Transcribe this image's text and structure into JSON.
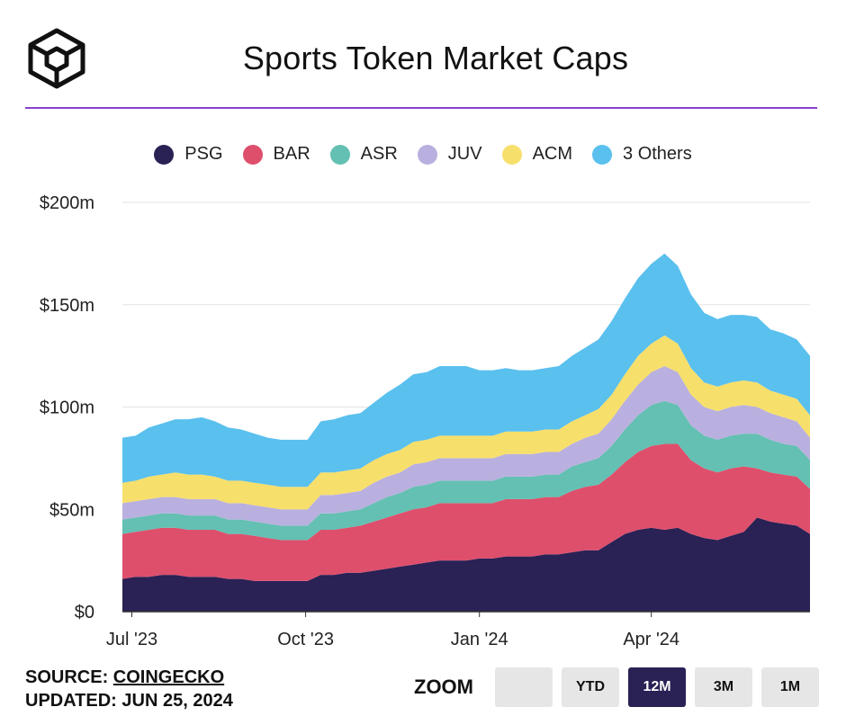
{
  "header": {
    "title": "Sports Token Market Caps"
  },
  "footer": {
    "source_label": "SOURCE:",
    "source_link": "COINGECKO",
    "updated_label": "UPDATED:",
    "updated_value": "JUN 25, 2024"
  },
  "zoom": {
    "label": "ZOOM",
    "buttons": [
      "",
      "YTD",
      "12M",
      "3M",
      "1M"
    ],
    "selected": "12M"
  },
  "colors": {
    "accent_rule": "#8a3fd0",
    "PSG": "#2a2155",
    "BAR": "#de4f6c",
    "ASR": "#63c0b2",
    "JUV": "#b9b0df",
    "ACM": "#f7df6b",
    "Others": "#5ac0ee"
  },
  "chart_data": {
    "type": "area",
    "stacked": true,
    "title": "Sports Token Market Caps",
    "y_unit": "$m",
    "ylim": [
      0,
      200
    ],
    "y_ticks": [
      0,
      50,
      100,
      150,
      200
    ],
    "y_tick_labels": [
      "$0",
      "$50m",
      "$100m",
      "$150m",
      "$200m"
    ],
    "x_ticks": [
      "2023-07-01",
      "2023-10-01",
      "2024-01-01",
      "2024-04-01"
    ],
    "x_tick_labels": [
      "Jul '23",
      "Oct '23",
      "Jan '24",
      "Apr '24"
    ],
    "grid": true,
    "legend_position": "top",
    "dates": [
      "2023-06-26",
      "2023-07-03",
      "2023-07-10",
      "2023-07-17",
      "2023-07-24",
      "2023-07-31",
      "2023-08-07",
      "2023-08-14",
      "2023-08-21",
      "2023-08-28",
      "2023-09-04",
      "2023-09-11",
      "2023-09-18",
      "2023-09-25",
      "2023-10-02",
      "2023-10-09",
      "2023-10-16",
      "2023-10-23",
      "2023-10-30",
      "2023-11-06",
      "2023-11-13",
      "2023-11-20",
      "2023-11-27",
      "2023-12-04",
      "2023-12-11",
      "2023-12-18",
      "2023-12-25",
      "2024-01-01",
      "2024-01-08",
      "2024-01-15",
      "2024-01-22",
      "2024-01-29",
      "2024-02-05",
      "2024-02-12",
      "2024-02-19",
      "2024-02-26",
      "2024-03-04",
      "2024-03-11",
      "2024-03-18",
      "2024-03-25",
      "2024-04-01",
      "2024-04-08",
      "2024-04-15",
      "2024-04-22",
      "2024-04-29",
      "2024-05-06",
      "2024-05-13",
      "2024-05-20",
      "2024-05-27",
      "2024-06-03",
      "2024-06-10",
      "2024-06-17",
      "2024-06-24"
    ],
    "series": [
      {
        "name": "PSG",
        "values": [
          16,
          17,
          17,
          18,
          18,
          17,
          17,
          17,
          16,
          16,
          15,
          15,
          15,
          15,
          15,
          18,
          18,
          19,
          19,
          20,
          21,
          22,
          23,
          24,
          25,
          25,
          25,
          26,
          26,
          27,
          27,
          27,
          28,
          28,
          29,
          30,
          30,
          34,
          38,
          40,
          41,
          40,
          41,
          38,
          36,
          35,
          37,
          39,
          46,
          44,
          43,
          42,
          38
        ]
      },
      {
        "name": "BAR",
        "values": [
          22,
          22,
          23,
          23,
          23,
          23,
          23,
          23,
          22,
          22,
          22,
          21,
          20,
          20,
          20,
          22,
          22,
          22,
          23,
          24,
          25,
          26,
          27,
          27,
          28,
          28,
          28,
          27,
          27,
          28,
          28,
          28,
          28,
          28,
          30,
          31,
          32,
          33,
          35,
          38,
          40,
          42,
          41,
          36,
          34,
          33,
          33,
          32,
          24,
          24,
          24,
          24,
          22
        ]
      },
      {
        "name": "ASR",
        "values": [
          7,
          7,
          7,
          7,
          7,
          7,
          7,
          7,
          7,
          7,
          7,
          7,
          7,
          7,
          7,
          8,
          8,
          8,
          8,
          9,
          10,
          10,
          11,
          11,
          11,
          11,
          11,
          11,
          11,
          11,
          11,
          11,
          11,
          11,
          12,
          12,
          13,
          14,
          16,
          18,
          20,
          21,
          19,
          17,
          16,
          16,
          16,
          16,
          17,
          16,
          15,
          15,
          14
        ]
      },
      {
        "name": "JUV",
        "values": [
          8,
          8,
          8,
          8,
          8,
          8,
          8,
          8,
          8,
          8,
          8,
          8,
          8,
          8,
          8,
          9,
          9,
          9,
          9,
          10,
          10,
          10,
          11,
          11,
          11,
          11,
          11,
          11,
          11,
          11,
          11,
          11,
          11,
          11,
          11,
          12,
          12,
          13,
          14,
          15,
          16,
          17,
          16,
          15,
          14,
          14,
          14,
          14,
          13,
          13,
          13,
          12,
          11
        ]
      },
      {
        "name": "ACM",
        "values": [
          10,
          10,
          11,
          11,
          12,
          12,
          12,
          11,
          11,
          11,
          11,
          11,
          11,
          11,
          11,
          11,
          11,
          11,
          11,
          11,
          11,
          11,
          11,
          11,
          11,
          11,
          11,
          11,
          11,
          11,
          11,
          11,
          11,
          11,
          11,
          11,
          12,
          12,
          13,
          14,
          14,
          15,
          14,
          13,
          12,
          12,
          12,
          12,
          12,
          11,
          11,
          11,
          11
        ]
      },
      {
        "name": "3 Others",
        "values": [
          22,
          22,
          24,
          25,
          26,
          27,
          28,
          27,
          26,
          25,
          24,
          23,
          23,
          23,
          23,
          25,
          26,
          27,
          27,
          28,
          30,
          32,
          33,
          33,
          34,
          34,
          34,
          32,
          32,
          31,
          30,
          30,
          30,
          31,
          32,
          33,
          34,
          36,
          37,
          38,
          39,
          40,
          38,
          36,
          34,
          33,
          33,
          32,
          32,
          30,
          30,
          29,
          29
        ]
      }
    ]
  }
}
